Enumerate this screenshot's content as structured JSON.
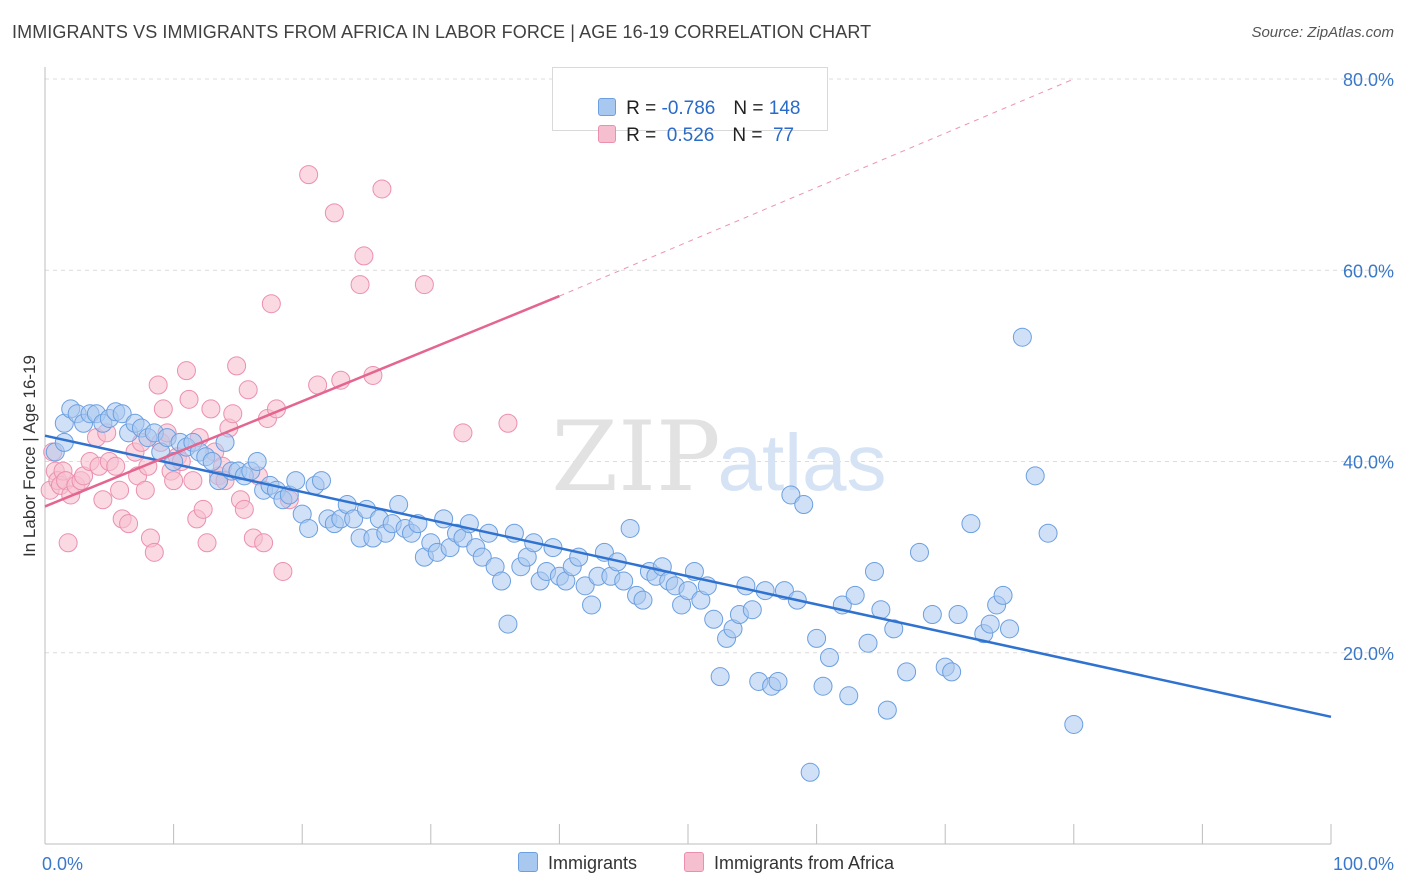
{
  "title": "IMMIGRANTS VS IMMIGRANTS FROM AFRICA IN LABOR FORCE | AGE 16-19 CORRELATION CHART",
  "source": "Source: ZipAtlas.com",
  "watermark": {
    "zip": "ZIP",
    "atlas": "atlas"
  },
  "colors": {
    "blue_fill": "#a9c8f0",
    "blue_stroke": "#6b9fe0",
    "blue_line": "#2f72d0",
    "pink_fill": "#f6bfd0",
    "pink_stroke": "#ec8fae",
    "pink_line": "#e4658f",
    "grid": "#dcdcdc",
    "tick_text": "#3a78c9"
  },
  "legend": {
    "rows": [
      {
        "r_label": "R = ",
        "r_value": "-0.786",
        "n_label": "N = ",
        "n_value": "148"
      },
      {
        "r_label": "R = ",
        "r_value": " 0.526",
        "n_label": "N = ",
        "n_value": " 77"
      }
    ]
  },
  "bottom_legend": {
    "series1": "Immigrants",
    "series2": "Immigrants from Africa"
  },
  "chart_data": {
    "type": "scatter",
    "title": "IMMIGRANTS VS IMMIGRANTS FROM AFRICA IN LABOR FORCE | AGE 16-19 CORRELATION CHART",
    "xlabel": "",
    "ylabel": "In Labor Force | Age 16-19",
    "xlim": [
      0,
      100
    ],
    "ylim": [
      0,
      80
    ],
    "x_tick_labels": [
      "0.0%",
      "100.0%"
    ],
    "y_ticks": [
      20,
      40,
      60,
      80
    ],
    "y_tick_labels": [
      "20.0%",
      "40.0%",
      "60.0%",
      "80.0%"
    ],
    "grid": true,
    "legend_position": "top-center",
    "series": [
      {
        "name": "Immigrants",
        "r": -0.786,
        "n": 148,
        "trend": {
          "x": [
            0,
            100
          ],
          "y": [
            42.7,
            13.3
          ]
        },
        "points": [
          [
            0.8,
            41
          ],
          [
            1.5,
            42
          ],
          [
            1.5,
            44
          ],
          [
            2,
            45.5
          ],
          [
            2.5,
            45
          ],
          [
            3,
            44
          ],
          [
            3.5,
            45
          ],
          [
            4,
            45
          ],
          [
            4.5,
            44
          ],
          [
            5,
            44.5
          ],
          [
            5.5,
            45.2
          ],
          [
            6,
            45
          ],
          [
            6.5,
            43
          ],
          [
            7,
            44
          ],
          [
            7.5,
            43.5
          ],
          [
            8,
            42.5
          ],
          [
            8.5,
            43
          ],
          [
            9,
            41
          ],
          [
            9.5,
            42.5
          ],
          [
            10,
            40
          ],
          [
            10.5,
            42
          ],
          [
            11,
            41.5
          ],
          [
            11.5,
            42
          ],
          [
            12,
            41
          ],
          [
            12.5,
            40.5
          ],
          [
            13,
            40
          ],
          [
            13.5,
            38
          ],
          [
            14,
            42
          ],
          [
            14.5,
            39
          ],
          [
            15,
            39
          ],
          [
            15.5,
            38.5
          ],
          [
            16,
            39
          ],
          [
            16.5,
            40
          ],
          [
            17,
            37
          ],
          [
            17.5,
            37.5
          ],
          [
            18,
            37
          ],
          [
            18.5,
            36
          ],
          [
            19,
            36.5
          ],
          [
            19.5,
            38
          ],
          [
            20,
            34.5
          ],
          [
            20.5,
            33
          ],
          [
            21,
            37.5
          ],
          [
            21.5,
            38
          ],
          [
            22,
            34
          ],
          [
            22.5,
            33.5
          ],
          [
            23,
            34
          ],
          [
            23.5,
            35.5
          ],
          [
            24,
            34
          ],
          [
            24.5,
            32
          ],
          [
            25,
            35
          ],
          [
            25.5,
            32
          ],
          [
            26,
            34
          ],
          [
            26.5,
            32.5
          ],
          [
            27,
            33.5
          ],
          [
            27.5,
            35.5
          ],
          [
            28,
            33
          ],
          [
            28.5,
            32.5
          ],
          [
            29,
            33.5
          ],
          [
            29.5,
            30
          ],
          [
            30,
            31.5
          ],
          [
            30.5,
            30.5
          ],
          [
            31,
            34
          ],
          [
            31.5,
            31
          ],
          [
            32,
            32.5
          ],
          [
            32.5,
            32
          ],
          [
            33,
            33.5
          ],
          [
            33.5,
            31
          ],
          [
            34,
            30
          ],
          [
            34.5,
            32.5
          ],
          [
            35,
            29
          ],
          [
            35.5,
            27.5
          ],
          [
            36,
            23
          ],
          [
            36.5,
            32.5
          ],
          [
            37,
            29
          ],
          [
            37.5,
            30
          ],
          [
            38,
            31.5
          ],
          [
            38.5,
            27.5
          ],
          [
            39,
            28.5
          ],
          [
            39.5,
            31
          ],
          [
            40,
            28
          ],
          [
            40.5,
            27.5
          ],
          [
            41,
            29
          ],
          [
            41.5,
            30
          ],
          [
            42,
            27
          ],
          [
            42.5,
            25
          ],
          [
            43,
            28
          ],
          [
            43.5,
            30.5
          ],
          [
            44,
            28
          ],
          [
            44.5,
            29.5
          ],
          [
            45,
            27.5
          ],
          [
            45.5,
            33
          ],
          [
            46,
            26
          ],
          [
            46.5,
            25.5
          ],
          [
            47,
            28.5
          ],
          [
            47.5,
            28
          ],
          [
            48,
            29
          ],
          [
            48.5,
            27.5
          ],
          [
            49,
            27
          ],
          [
            49.5,
            25
          ],
          [
            50,
            26.5
          ],
          [
            50.5,
            28.5
          ],
          [
            51,
            25.5
          ],
          [
            51.5,
            27
          ],
          [
            52,
            23.5
          ],
          [
            52.5,
            17.5
          ],
          [
            53,
            21.5
          ],
          [
            53.5,
            22.5
          ],
          [
            54,
            24
          ],
          [
            54.5,
            27
          ],
          [
            55,
            24.5
          ],
          [
            55.5,
            17
          ],
          [
            56,
            26.5
          ],
          [
            56.5,
            16.5
          ],
          [
            57,
            17
          ],
          [
            57.5,
            26.5
          ],
          [
            58,
            36.5
          ],
          [
            58.5,
            25.5
          ],
          [
            59,
            35.5
          ],
          [
            59.5,
            7.5
          ],
          [
            60,
            21.5
          ],
          [
            60.5,
            16.5
          ],
          [
            61,
            19.5
          ],
          [
            62,
            25
          ],
          [
            62.5,
            15.5
          ],
          [
            63,
            26
          ],
          [
            64,
            21
          ],
          [
            64.5,
            28.5
          ],
          [
            65,
            24.5
          ],
          [
            65.5,
            14
          ],
          [
            66,
            22.5
          ],
          [
            67,
            18
          ],
          [
            68,
            30.5
          ],
          [
            69,
            24
          ],
          [
            70,
            18.5
          ],
          [
            70.5,
            18
          ],
          [
            71,
            24
          ],
          [
            72,
            33.5
          ],
          [
            73,
            22
          ],
          [
            73.5,
            23
          ],
          [
            74,
            25
          ],
          [
            74.5,
            26
          ],
          [
            75,
            22.5
          ],
          [
            76,
            53
          ],
          [
            77,
            38.5
          ],
          [
            78,
            32.5
          ],
          [
            80,
            12.5
          ]
        ]
      },
      {
        "name": "Immigrants from Africa",
        "r": 0.526,
        "n": 77,
        "trend": {
          "x": [
            0,
            40
          ],
          "y": [
            35.3,
            57.3
          ]
        },
        "trend_dashed": {
          "x": [
            40,
            80
          ],
          "y": [
            57.3,
            80
          ]
        },
        "points": [
          [
            0.4,
            37
          ],
          [
            0.6,
            41
          ],
          [
            0.8,
            39
          ],
          [
            1,
            38
          ],
          [
            1.2,
            37.5
          ],
          [
            1.4,
            39
          ],
          [
            1.6,
            38
          ],
          [
            1.8,
            31.5
          ],
          [
            2,
            36.5
          ],
          [
            2.4,
            37.5
          ],
          [
            2.8,
            38
          ],
          [
            3,
            38.5
          ],
          [
            3.5,
            40
          ],
          [
            4,
            42.5
          ],
          [
            4.2,
            39.5
          ],
          [
            4.5,
            36
          ],
          [
            4.8,
            43
          ],
          [
            5,
            40
          ],
          [
            5.5,
            39.5
          ],
          [
            5.8,
            37
          ],
          [
            6,
            34
          ],
          [
            6.5,
            33.5
          ],
          [
            7,
            41
          ],
          [
            7.2,
            38.5
          ],
          [
            7.5,
            42
          ],
          [
            7.8,
            37
          ],
          [
            8,
            39.5
          ],
          [
            8.2,
            32
          ],
          [
            8.5,
            30.5
          ],
          [
            8.8,
            48
          ],
          [
            9,
            42
          ],
          [
            9.2,
            45.5
          ],
          [
            9.5,
            43
          ],
          [
            9.8,
            39
          ],
          [
            10,
            38
          ],
          [
            10.3,
            40.5
          ],
          [
            10.6,
            40
          ],
          [
            11,
            49.5
          ],
          [
            11.2,
            46.5
          ],
          [
            11.5,
            38
          ],
          [
            11.8,
            34
          ],
          [
            12,
            42.5
          ],
          [
            12.3,
            35
          ],
          [
            12.6,
            31.5
          ],
          [
            12.9,
            45.5
          ],
          [
            13.2,
            41
          ],
          [
            13.5,
            38.5
          ],
          [
            13.8,
            39.5
          ],
          [
            14,
            38
          ],
          [
            14.3,
            43.5
          ],
          [
            14.6,
            45
          ],
          [
            14.9,
            50
          ],
          [
            15.2,
            36
          ],
          [
            15.5,
            35
          ],
          [
            15.8,
            47.5
          ],
          [
            16.2,
            32
          ],
          [
            16.6,
            38.5
          ],
          [
            17,
            31.5
          ],
          [
            17.3,
            44.5
          ],
          [
            17.6,
            56.5
          ],
          [
            18,
            45.5
          ],
          [
            18.5,
            28.5
          ],
          [
            19,
            36
          ],
          [
            20.5,
            70
          ],
          [
            21.2,
            48
          ],
          [
            22.5,
            66
          ],
          [
            23,
            48.5
          ],
          [
            24.5,
            58.5
          ],
          [
            24.8,
            61.5
          ],
          [
            25.5,
            49
          ],
          [
            26.2,
            68.5
          ],
          [
            29.5,
            58.5
          ],
          [
            32.5,
            43
          ],
          [
            36,
            44
          ]
        ]
      }
    ]
  }
}
